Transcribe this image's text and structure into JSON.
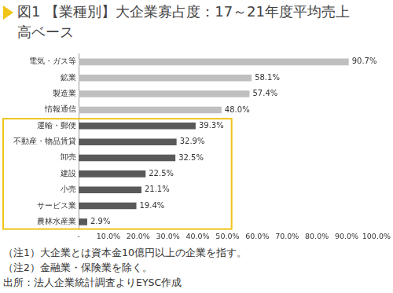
{
  "chart_data": {
    "type": "bar",
    "title": "図1 【業種別】大企業寡占度：17～21年度平均売上高ベース",
    "orientation": "horizontal",
    "categories": [
      "電気・ガス等",
      "鉱業",
      "製造業",
      "情報通信",
      "運輸・郵便",
      "不動産・物品賃貸",
      "卸売",
      "建設",
      "小売",
      "サービス業",
      "農林水産業"
    ],
    "values": [
      90.7,
      58.1,
      57.4,
      48.0,
      39.3,
      32.9,
      32.5,
      22.5,
      21.1,
      19.4,
      2.9
    ],
    "value_labels": [
      "90.7%",
      "58.1%",
      "57.4%",
      "48.0%",
      "39.3%",
      "32.9%",
      "32.5%",
      "22.5%",
      "21.1%",
      "19.4%",
      "2.9%"
    ],
    "data_labels": true,
    "colors": [
      "#bfbfbf",
      "#bfbfbf",
      "#bfbfbf",
      "#bfbfbf",
      "#595959",
      "#595959",
      "#595959",
      "#595959",
      "#595959",
      "#595959",
      "#595959"
    ],
    "xlim": [
      0,
      100
    ],
    "xticks": [
      {
        "value": 0,
        "label": "-"
      },
      {
        "value": 10,
        "label": "10.0%"
      },
      {
        "value": 20,
        "label": "20.0%"
      },
      {
        "value": 30,
        "label": "30.0%"
      },
      {
        "value": 40,
        "label": "40.0%"
      },
      {
        "value": 50,
        "label": "50.0%"
      },
      {
        "value": 60,
        "label": "60.0%"
      },
      {
        "value": 70,
        "label": "70.0%"
      },
      {
        "value": 80,
        "label": "80.0%"
      },
      {
        "value": 90,
        "label": "90.0%"
      },
      {
        "value": 100,
        "label": "100.0%"
      }
    ],
    "grid": false,
    "annotations": [
      "（注1）大企業とは資本金10億円以上の企業を指す。",
      "（注2）金融業・保険業を除く。",
      "出所：法人企業統計調査よりEYSC作成"
    ]
  }
}
